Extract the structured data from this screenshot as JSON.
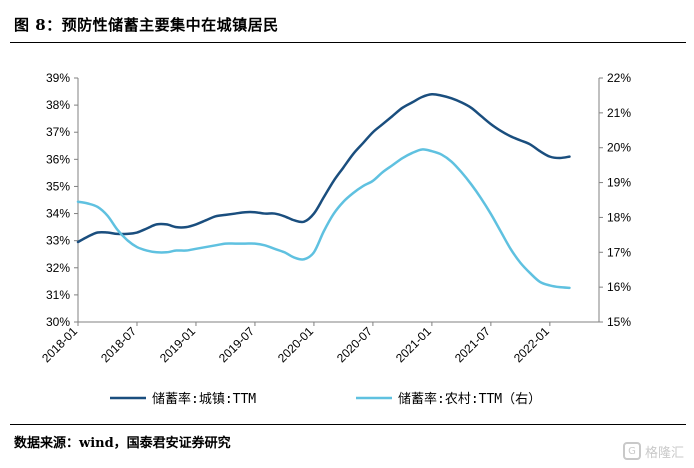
{
  "figure": {
    "title": "图 8：预防性储蓄主要集中在城镇居民",
    "source": "数据来源：wind，国泰君安证券研究",
    "watermark": "格隆汇"
  },
  "colors": {
    "urban": "#1a4e7e",
    "rural": "#5fc1e0",
    "axis": "#808080"
  },
  "icons": {
    "watermark_icon": "G"
  },
  "chart_data": {
    "type": "line",
    "x_ticks": [
      "2018-01",
      "2018-07",
      "2019-01",
      "2019-07",
      "2020-01",
      "2020-07",
      "2021-01",
      "2021-07",
      "2022-01"
    ],
    "y_left": {
      "min": 30,
      "max": 39,
      "ticks": [
        "30%",
        "31%",
        "32%",
        "33%",
        "34%",
        "35%",
        "36%",
        "37%",
        "38%",
        "39%"
      ]
    },
    "y_right": {
      "min": 15,
      "max": 22,
      "ticks": [
        "15%",
        "16%",
        "17%",
        "18%",
        "19%",
        "20%",
        "21%",
        "22%"
      ]
    },
    "grid": false,
    "legend_position": "bottom",
    "series": [
      {
        "name": "储蓄率:城镇:TTM",
        "axis": "left",
        "x": [
          "2018-01",
          "2018-02",
          "2018-03",
          "2018-04",
          "2018-05",
          "2018-06",
          "2018-07",
          "2018-08",
          "2018-09",
          "2018-10",
          "2018-11",
          "2018-12",
          "2019-01",
          "2019-02",
          "2019-03",
          "2019-04",
          "2019-05",
          "2019-06",
          "2019-07",
          "2019-08",
          "2019-09",
          "2019-10",
          "2019-11",
          "2019-12",
          "2020-01",
          "2020-02",
          "2020-03",
          "2020-04",
          "2020-05",
          "2020-06",
          "2020-07",
          "2020-08",
          "2020-09",
          "2020-10",
          "2020-11",
          "2020-12",
          "2021-01",
          "2021-02",
          "2021-03",
          "2021-04",
          "2021-05",
          "2021-06",
          "2021-07",
          "2021-08",
          "2021-09",
          "2021-10",
          "2021-11",
          "2021-12",
          "2022-01",
          "2022-02",
          "2022-03"
        ],
        "values": [
          32.95,
          33.15,
          33.3,
          33.3,
          33.25,
          33.25,
          33.3,
          33.45,
          33.6,
          33.6,
          33.5,
          33.5,
          33.6,
          33.75,
          33.9,
          33.95,
          34.0,
          34.05,
          34.05,
          34.0,
          34.0,
          33.9,
          33.75,
          33.7,
          34.0,
          34.6,
          35.2,
          35.7,
          36.2,
          36.6,
          37.0,
          37.3,
          37.6,
          37.9,
          38.1,
          38.3,
          38.4,
          38.35,
          38.25,
          38.1,
          37.9,
          37.6,
          37.3,
          37.05,
          36.85,
          36.7,
          36.55,
          36.3,
          36.1,
          36.05,
          36.1
        ]
      },
      {
        "name": "储蓄率:农村:TTM（右）",
        "axis": "right",
        "x": [
          "2018-01",
          "2018-02",
          "2018-03",
          "2018-04",
          "2018-05",
          "2018-06",
          "2018-07",
          "2018-08",
          "2018-09",
          "2018-10",
          "2018-11",
          "2018-12",
          "2019-01",
          "2019-02",
          "2019-03",
          "2019-04",
          "2019-05",
          "2019-06",
          "2019-07",
          "2019-08",
          "2019-09",
          "2019-10",
          "2019-11",
          "2019-12",
          "2020-01",
          "2020-02",
          "2020-03",
          "2020-04",
          "2020-05",
          "2020-06",
          "2020-07",
          "2020-08",
          "2020-09",
          "2020-10",
          "2020-11",
          "2020-12",
          "2021-01",
          "2021-02",
          "2021-03",
          "2021-04",
          "2021-05",
          "2021-06",
          "2021-07",
          "2021-08",
          "2021-09",
          "2021-10",
          "2021-11",
          "2021-12",
          "2022-01",
          "2022-02",
          "2022-03"
        ],
        "values": [
          18.45,
          18.4,
          18.3,
          18.05,
          17.65,
          17.35,
          17.15,
          17.05,
          17.0,
          17.0,
          17.05,
          17.05,
          17.1,
          17.15,
          17.2,
          17.25,
          17.25,
          17.25,
          17.25,
          17.2,
          17.1,
          17.0,
          16.85,
          16.8,
          17.0,
          17.6,
          18.1,
          18.45,
          18.7,
          18.9,
          19.05,
          19.3,
          19.5,
          19.7,
          19.85,
          19.95,
          19.9,
          19.8,
          19.6,
          19.3,
          18.95,
          18.55,
          18.1,
          17.6,
          17.1,
          16.7,
          16.4,
          16.15,
          16.05,
          16.0,
          15.98
        ]
      }
    ]
  }
}
